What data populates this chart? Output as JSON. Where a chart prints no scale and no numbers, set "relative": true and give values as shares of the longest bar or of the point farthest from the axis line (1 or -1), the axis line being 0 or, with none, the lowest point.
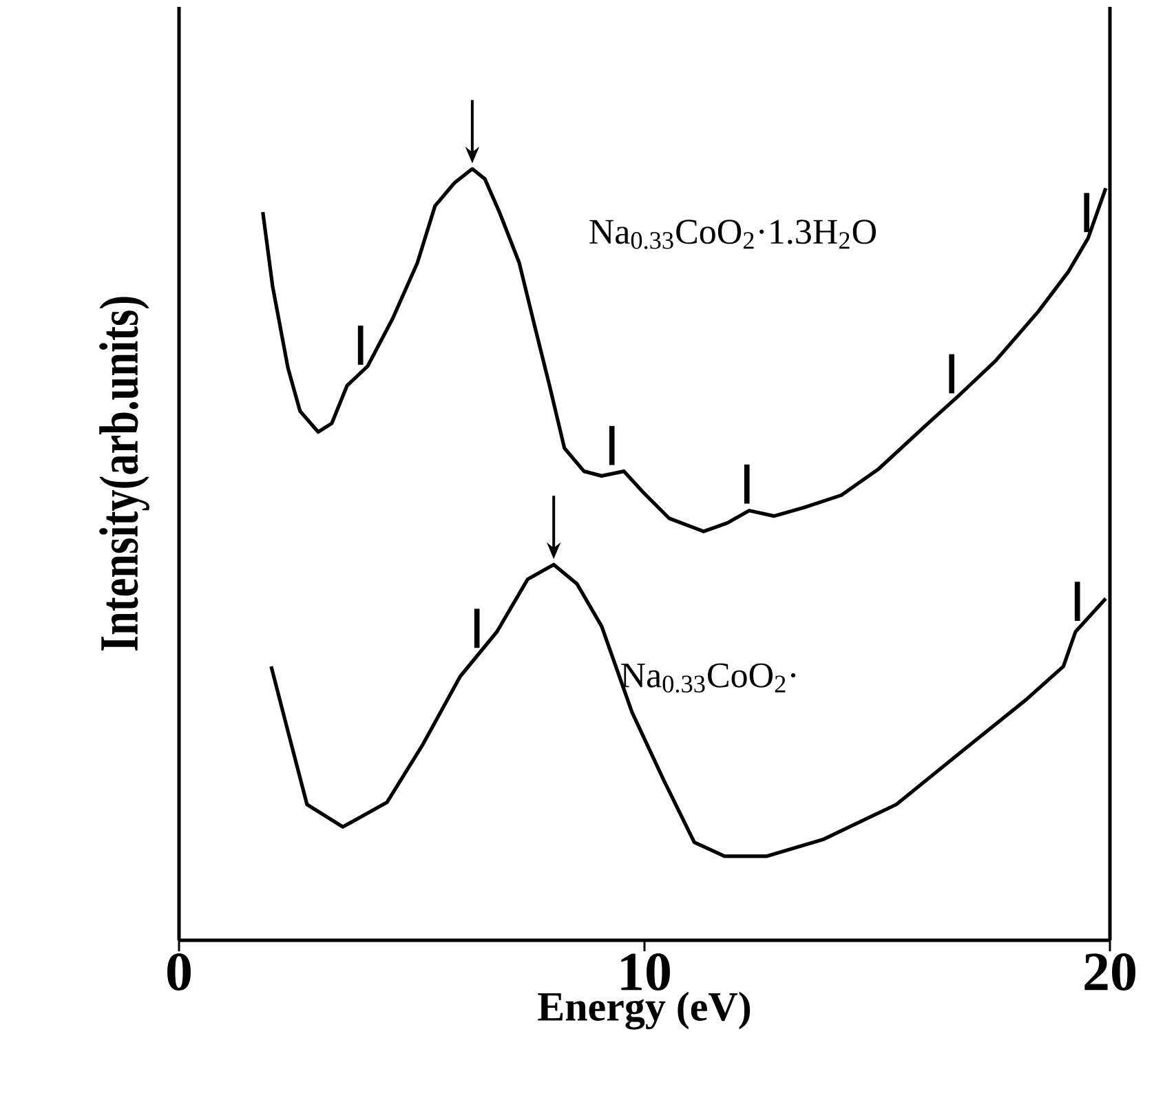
{
  "chart_data": {
    "type": "line",
    "relative": true,
    "xlabel": "Energy (eV)",
    "ylabel": "Intensity(arb.units)",
    "xlim": [
      0,
      20
    ],
    "xticks": [
      0,
      10,
      20
    ],
    "grid": false,
    "annotations": [
      {
        "text": "|",
        "x": 3.9,
        "y": 0.735
      },
      {
        "text": "|",
        "x": 9.3,
        "y": 0.605
      },
      {
        "text": "|",
        "x": 12.2,
        "y": 0.555
      },
      {
        "text": "|",
        "x": 16.6,
        "y": 0.698
      },
      {
        "text": "|",
        "x": 19.5,
        "y": 0.907
      },
      {
        "text": "|",
        "x": 6.4,
        "y": 0.368
      },
      {
        "text": "|",
        "x": 19.3,
        "y": 0.403
      }
    ],
    "marker": "none",
    "line_style": "solid",
    "series": [
      {
        "name": "Na$_{0.33}$CoO$_{2}$·1.3H$_{2}$O",
        "color": "#000000",
        "x": [
          1.8,
          2.01,
          2.34,
          2.6,
          2.99,
          3.28,
          3.61,
          4.05,
          4.59,
          5.12,
          5.5,
          5.92,
          6.3,
          6.57,
          6.89,
          7.31,
          7.63,
          7.96,
          8.28,
          8.7,
          9.08,
          9.56,
          10.0,
          10.53,
          11.27,
          11.78,
          12.25,
          12.78,
          13.43,
          14.23,
          15.03,
          16.09,
          16.75,
          17.54,
          18.46,
          19.11,
          19.53,
          19.91
        ],
        "values": [
          0.944,
          0.848,
          0.742,
          0.686,
          0.659,
          0.67,
          0.719,
          0.744,
          0.806,
          0.878,
          0.952,
          0.982,
          1.0,
          0.987,
          0.943,
          0.878,
          0.799,
          0.719,
          0.638,
          0.608,
          0.602,
          0.608,
          0.579,
          0.547,
          0.53,
          0.541,
          0.557,
          0.55,
          0.561,
          0.577,
          0.611,
          0.67,
          0.706,
          0.751,
          0.815,
          0.867,
          0.91,
          0.975
        ]
      },
      {
        "name": "Na$_{0.33}$CoO$_{2}$·",
        "color": "#000000",
        "x": [
          1.98,
          2.34,
          2.75,
          3.52,
          4.47,
          5.24,
          6.04,
          6.83,
          7.49,
          8.05,
          8.55,
          9.08,
          9.73,
          10.41,
          11.07,
          11.72,
          12.63,
          13.85,
          15.41,
          16.86,
          18.2,
          19.0,
          19.26,
          19.91
        ],
        "values": [
          0.355,
          0.271,
          0.176,
          0.147,
          0.179,
          0.254,
          0.342,
          0.4,
          0.468,
          0.487,
          0.462,
          0.407,
          0.296,
          0.208,
          0.127,
          0.109,
          0.109,
          0.131,
          0.176,
          0.247,
          0.312,
          0.355,
          0.4,
          0.443
        ]
      }
    ]
  }
}
